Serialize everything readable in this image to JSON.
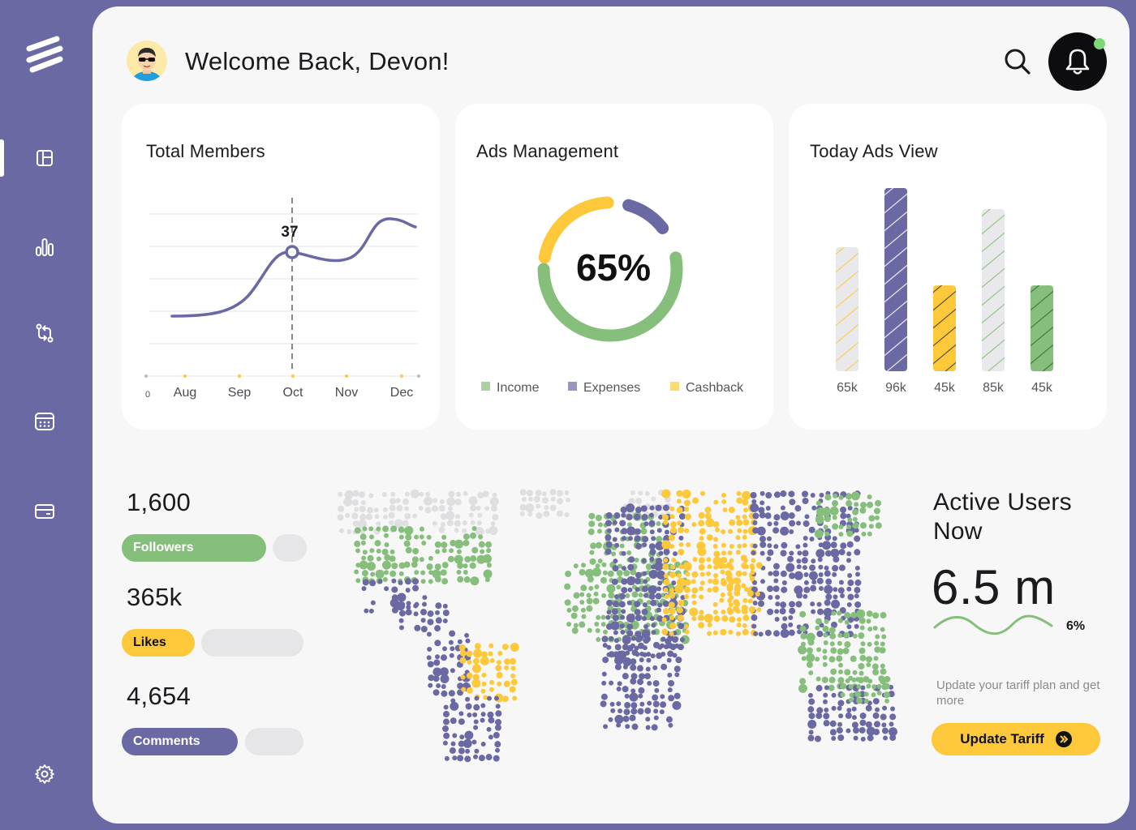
{
  "header": {
    "greeting": "Welcome Back, Devon!"
  },
  "sidebar": {
    "items": [
      {
        "icon": "layout-icon",
        "active": true
      },
      {
        "icon": "bar-chart-icon",
        "active": false
      },
      {
        "icon": "transfer-icon",
        "active": false
      },
      {
        "icon": "calendar-icon",
        "active": false
      },
      {
        "icon": "credit-card-icon",
        "active": false
      },
      {
        "icon": "gear-icon",
        "active": false
      }
    ]
  },
  "cards": {
    "total_members": {
      "title": "Total Members",
      "highlight_label": "37"
    },
    "ads_management": {
      "title": "Ads Management",
      "center_value": "65%"
    },
    "today_ads_view": {
      "title": "Today Ads View"
    }
  },
  "chart_data": [
    {
      "type": "line",
      "title": "Total Members",
      "x_origin_label": "0",
      "categories": [
        "Aug",
        "Sep",
        "Oct",
        "Nov",
        "Dec"
      ],
      "highlight": {
        "category": "Oct",
        "value": 37
      },
      "grid": true
    },
    {
      "type": "pie",
      "title": "Ads Management",
      "center_label": "65%",
      "legend_position": "bottom",
      "legend": [
        {
          "label": "Income",
          "color": "#86be7b"
        },
        {
          "label": "Expenses",
          "color": "#6a69a3"
        },
        {
          "label": "Cashback",
          "color": "#fdc93a"
        }
      ]
    },
    {
      "type": "bar",
      "title": "Today Ads View",
      "categories": [
        "65k",
        "96k",
        "45k",
        "85k",
        "45k"
      ],
      "values": [
        65,
        96,
        45,
        85,
        45
      ],
      "colors": [
        "#e9e9eb",
        "#6a69a3",
        "#fdc93a",
        "#e9e9eb",
        "#86be7b"
      ],
      "stripe_colors": [
        "#fdc93a",
        "#ffffff",
        "#3a3a3a",
        "#86be7b",
        "#3a6a3a"
      ]
    }
  ],
  "stats": {
    "followers": {
      "value": "1,600",
      "label": "Followers",
      "fill": 0.72,
      "color": "#86be7b"
    },
    "likes": {
      "value": "365k",
      "label": "Likes",
      "fill": 0.4,
      "color": "#fdc93a"
    },
    "comments": {
      "value": "4,654",
      "label": "Comments",
      "fill": 0.64,
      "color": "#6a69a3"
    }
  },
  "active_users": {
    "title": "Active Users Now",
    "value": "6.5 m",
    "change": "6%",
    "tariff_text": "Update your tariff plan and get more",
    "button_label": "Update Tariff"
  },
  "colors": {
    "accent_purple": "#6a69a3",
    "accent_green": "#86be7b",
    "accent_yellow": "#fdc93a",
    "map_grey": "#dcdcdf"
  }
}
